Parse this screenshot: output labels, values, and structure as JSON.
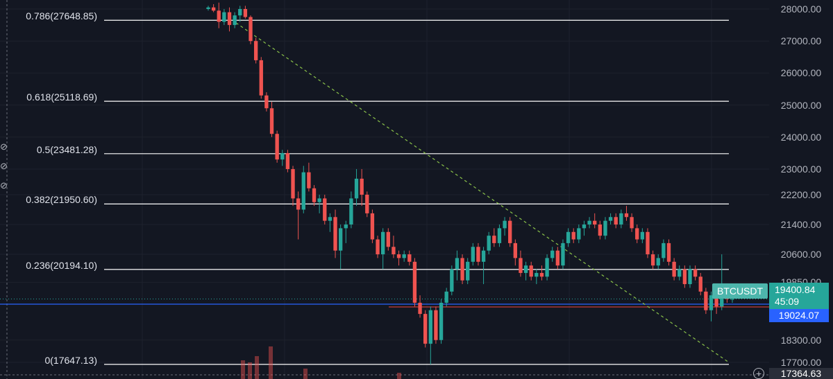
{
  "symbol": "BTCUSDT",
  "price_scale": {
    "ticks": [
      "28000.00",
      "27000.00",
      "26000.00",
      "25000.00",
      "24000.00",
      "23000.00",
      "22200.00",
      "21400.00",
      "20600.00",
      "19850.00",
      "18300.00",
      "17700.00"
    ],
    "current_price": "19400.84",
    "countdown": "45:09",
    "fib_line_price": "19024.07",
    "bottom_price": "17364.63"
  },
  "fib_levels": [
    {
      "label": "0.786(27648.85)",
      "price": 27648.85
    },
    {
      "label": "0.618(25118.69)",
      "price": 25118.69
    },
    {
      "label": "0.5(23481.28)",
      "price": 23481.28
    },
    {
      "label": "0.382(21950.60)",
      "price": 21950.6
    },
    {
      "label": "0.236(20194.10)",
      "price": 20194.1
    },
    {
      "label": "0(17647.13)",
      "price": 17647.13
    }
  ],
  "colors": {
    "background": "#131722",
    "up": "#26a69a",
    "down": "#ef5350",
    "fib_line": "#ffffff",
    "trend_line": "#8bc34a",
    "blue_line": "#2962ff",
    "red_line": "#f44336",
    "price_line": "#26a69a"
  },
  "side_icons": [
    "eye-off-icon",
    "eye-off-icon",
    "eye-off-icon"
  ],
  "bottom_button": "+",
  "chart_data": {
    "type": "candlestick",
    "ylim": [
      17364.63,
      28200
    ],
    "candles": [
      [
        28000,
        28100,
        27950,
        28050
      ],
      [
        28050,
        28150,
        27900,
        27950
      ],
      [
        27950,
        28200,
        27400,
        27600
      ],
      [
        27600,
        28000,
        27500,
        27900
      ],
      [
        27900,
        28050,
        27300,
        27500
      ],
      [
        27500,
        27900,
        27400,
        27800
      ],
      [
        27800,
        28100,
        27600,
        28000
      ],
      [
        28000,
        28100,
        27700,
        27750
      ],
      [
        27750,
        27800,
        26900,
        27000
      ],
      [
        27000,
        27100,
        26300,
        26400
      ],
      [
        26400,
        26500,
        25200,
        25300
      ],
      [
        25300,
        25400,
        24800,
        24900
      ],
      [
        24900,
        25100,
        24000,
        24100
      ],
      [
        24100,
        24200,
        23200,
        23300
      ],
      [
        23300,
        23600,
        23100,
        23500
      ],
      [
        23500,
        23600,
        22900,
        23000
      ],
      [
        23000,
        23100,
        21900,
        22100
      ],
      [
        22100,
        22300,
        21000,
        21800
      ],
      [
        21800,
        23100,
        21700,
        22900
      ],
      [
        22900,
        23200,
        22300,
        22400
      ],
      [
        22400,
        22500,
        21900,
        22000
      ],
      [
        22000,
        22200,
        21700,
        22100
      ],
      [
        22100,
        22200,
        21400,
        21500
      ],
      [
        21500,
        21700,
        21200,
        21600
      ],
      [
        21600,
        21800,
        20500,
        20700
      ],
      [
        20700,
        21400,
        20200,
        21300
      ],
      [
        21300,
        21500,
        20900,
        21400
      ],
      [
        21400,
        22300,
        21300,
        22100
      ],
      [
        22100,
        23000,
        21900,
        22700
      ],
      [
        22700,
        23000,
        21900,
        22200
      ],
      [
        22200,
        22300,
        21600,
        21700
      ],
      [
        21700,
        21800,
        20900,
        21000
      ],
      [
        21000,
        21100,
        20500,
        20600
      ],
      [
        20600,
        21300,
        20200,
        21200
      ],
      [
        21200,
        21300,
        20700,
        20800
      ],
      [
        20800,
        21100,
        20500,
        20600
      ],
      [
        20600,
        20700,
        20300,
        20500
      ],
      [
        20500,
        20700,
        20400,
        20600
      ],
      [
        20600,
        20700,
        20300,
        20400
      ],
      [
        20400,
        20500,
        19200,
        19300
      ],
      [
        19300,
        19500,
        18900,
        19000
      ],
      [
        19000,
        19100,
        18100,
        18200
      ],
      [
        18200,
        19200,
        17647,
        19100
      ],
      [
        19100,
        19200,
        18200,
        18300
      ],
      [
        18300,
        19400,
        18200,
        19300
      ],
      [
        19300,
        19700,
        19200,
        19600
      ],
      [
        19600,
        20300,
        19500,
        20200
      ],
      [
        20200,
        20700,
        19900,
        20500
      ],
      [
        20500,
        20600,
        19800,
        19900
      ],
      [
        19900,
        20500,
        19800,
        20400
      ],
      [
        20400,
        20900,
        20300,
        20800
      ],
      [
        20800,
        20900,
        20300,
        20400
      ],
      [
        20400,
        20800,
        19800,
        20700
      ],
      [
        20700,
        21200,
        20600,
        21100
      ],
      [
        21100,
        21300,
        20800,
        20900
      ],
      [
        20900,
        21400,
        20800,
        21300
      ],
      [
        21300,
        21600,
        21100,
        21500
      ],
      [
        21500,
        21600,
        20800,
        20900
      ],
      [
        20900,
        21000,
        20300,
        20500
      ],
      [
        20500,
        20700,
        20000,
        20100
      ],
      [
        20100,
        20400,
        19900,
        20300
      ],
      [
        20300,
        20400,
        19900,
        20000
      ],
      [
        20000,
        20200,
        19800,
        20100
      ],
      [
        20100,
        20300,
        19900,
        20000
      ],
      [
        20000,
        20600,
        19900,
        20500
      ],
      [
        20500,
        20800,
        20400,
        20700
      ],
      [
        20700,
        20800,
        20200,
        20300
      ],
      [
        20300,
        21000,
        20200,
        20900
      ],
      [
        20900,
        21300,
        20800,
        21200
      ],
      [
        21200,
        21300,
        20900,
        21000
      ],
      [
        21000,
        21400,
        20900,
        21300
      ],
      [
        21300,
        21500,
        21100,
        21400
      ],
      [
        21400,
        21600,
        21300,
        21500
      ],
      [
        21500,
        21700,
        21300,
        21400
      ],
      [
        21400,
        21500,
        21000,
        21100
      ],
      [
        21100,
        21600,
        21000,
        21500
      ],
      [
        21500,
        21700,
        21400,
        21600
      ],
      [
        21600,
        21700,
        21300,
        21400
      ],
      [
        21400,
        21800,
        21300,
        21700
      ],
      [
        21700,
        21900,
        21500,
        21600
      ],
      [
        21600,
        21700,
        21200,
        21300
      ],
      [
        21300,
        21400,
        20900,
        21000
      ],
      [
        21000,
        21300,
        20900,
        21200
      ],
      [
        21200,
        21300,
        20500,
        20600
      ],
      [
        20600,
        20700,
        20200,
        20300
      ],
      [
        20300,
        20600,
        20200,
        20500
      ],
      [
        20500,
        21000,
        20400,
        20900
      ],
      [
        20900,
        21000,
        20300,
        20400
      ],
      [
        20400,
        20500,
        19900,
        20000
      ],
      [
        20000,
        20300,
        19900,
        20200
      ],
      [
        20200,
        20300,
        19700,
        19800
      ],
      [
        19800,
        20300,
        19700,
        20200
      ],
      [
        20200,
        20300,
        19900,
        20000
      ],
      [
        20000,
        20100,
        19500,
        19600
      ],
      [
        19600,
        19700,
        19000,
        19100
      ],
      [
        19100,
        19600,
        18800,
        19500
      ],
      [
        19500,
        19800,
        19000,
        19200
      ],
      [
        19200,
        20600,
        19100,
        19700
      ],
      [
        19700,
        19800,
        19300,
        19400
      ],
      [
        19400,
        19700,
        19300,
        19401
      ]
    ]
  }
}
